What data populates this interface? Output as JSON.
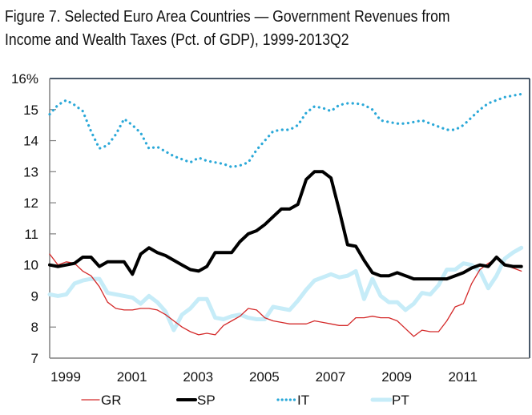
{
  "title_line1": "Figure 7. Selected Euro Area Countries — Government Revenues from",
  "title_line2": "Income and Wealth Taxes (Pct. of GDP), 1999-2013Q2",
  "chart_data": {
    "type": "line",
    "title": "Figure 7. Selected Euro Area Countries — Government Revenues from Income and Wealth Taxes (Pct. of GDP), 1999-2013Q2",
    "xlabel": "",
    "ylabel": "",
    "x_start": "1999Q1",
    "x_end": "2013Q2",
    "frequency": "quarterly",
    "xlim": [
      1999,
      2013.5
    ],
    "ylim": [
      7,
      16
    ],
    "y_ticks": [
      7,
      8,
      9,
      10,
      11,
      12,
      13,
      14,
      15,
      16
    ],
    "y_tick_labels": [
      "7",
      "8",
      "9",
      "10",
      "11",
      "12",
      "13",
      "14",
      "15",
      "16%"
    ],
    "x_ticks": [
      1999,
      2001,
      2003,
      2005,
      2007,
      2009,
      2011
    ],
    "x_tick_labels": [
      "1999",
      "2001",
      "2003",
      "2005",
      "2007",
      "2009",
      "2011"
    ],
    "grid": false,
    "legend_position": "bottom",
    "series": [
      {
        "name": "GR",
        "color": "#d42a2a",
        "style": "thin-solid",
        "values": [
          10.35,
          10.0,
          10.1,
          10.05,
          9.8,
          9.65,
          9.3,
          8.8,
          8.6,
          8.55,
          8.55,
          8.6,
          8.6,
          8.55,
          8.4,
          8.2,
          8.0,
          7.85,
          7.75,
          7.8,
          7.75,
          8.05,
          8.2,
          8.35,
          8.6,
          8.55,
          8.3,
          8.2,
          8.15,
          8.1,
          8.1,
          8.1,
          8.2,
          8.15,
          8.1,
          8.05,
          8.05,
          8.3,
          8.3,
          8.35,
          8.3,
          8.3,
          8.2,
          7.95,
          7.7,
          7.9,
          7.85,
          7.85,
          8.2,
          8.65,
          8.75,
          9.4,
          9.85,
          10.05,
          10.2,
          10.0,
          9.9,
          9.8
        ]
      },
      {
        "name": "SP",
        "color": "#000000",
        "style": "thick-solid",
        "values": [
          10.0,
          9.95,
          10.0,
          10.05,
          10.25,
          10.25,
          9.95,
          10.1,
          10.1,
          10.1,
          9.7,
          10.35,
          10.55,
          10.4,
          10.3,
          10.15,
          10.0,
          9.85,
          9.8,
          9.95,
          10.4,
          10.4,
          10.4,
          10.75,
          11.0,
          11.1,
          11.3,
          11.55,
          11.8,
          11.8,
          11.95,
          12.75,
          13.0,
          13.0,
          12.8,
          11.75,
          10.65,
          10.6,
          10.15,
          9.75,
          9.65,
          9.65,
          9.75,
          9.65,
          9.55,
          9.55,
          9.55,
          9.55,
          9.55,
          9.65,
          9.75,
          9.9,
          10.0,
          9.95,
          10.25,
          10.0,
          9.95,
          9.95
        ]
      },
      {
        "name": "IT",
        "color": "#2aa8d8",
        "style": "dotted",
        "values": [
          14.85,
          15.15,
          15.3,
          15.15,
          14.95,
          14.3,
          13.75,
          13.85,
          14.2,
          14.7,
          14.5,
          14.25,
          13.75,
          13.8,
          13.65,
          13.5,
          13.4,
          13.3,
          13.45,
          13.35,
          13.3,
          13.25,
          13.15,
          13.2,
          13.3,
          13.7,
          14.0,
          14.3,
          14.35,
          14.35,
          14.5,
          14.9,
          15.1,
          15.05,
          14.95,
          15.15,
          15.2,
          15.2,
          15.15,
          15.0,
          14.65,
          14.6,
          14.55,
          14.55,
          14.6,
          14.65,
          14.55,
          14.45,
          14.35,
          14.35,
          14.5,
          14.75,
          15.0,
          15.2,
          15.3,
          15.4,
          15.45,
          15.5
        ]
      },
      {
        "name": "PT",
        "color": "#c6ecf8",
        "style": "thick-solid",
        "values": [
          9.05,
          9.0,
          9.05,
          9.4,
          9.5,
          9.55,
          9.55,
          9.1,
          9.05,
          9.0,
          8.95,
          8.75,
          9.0,
          8.8,
          8.5,
          7.9,
          8.4,
          8.6,
          8.9,
          8.9,
          8.3,
          8.25,
          8.35,
          8.4,
          8.3,
          8.25,
          8.25,
          8.65,
          8.6,
          8.55,
          8.85,
          9.2,
          9.5,
          9.6,
          9.7,
          9.6,
          9.65,
          9.8,
          8.9,
          9.55,
          9.0,
          8.8,
          8.8,
          8.55,
          8.75,
          9.1,
          9.05,
          9.35,
          9.85,
          9.85,
          10.05,
          10.0,
          9.8,
          9.25,
          9.65,
          10.2,
          10.4,
          10.55
        ]
      }
    ]
  }
}
